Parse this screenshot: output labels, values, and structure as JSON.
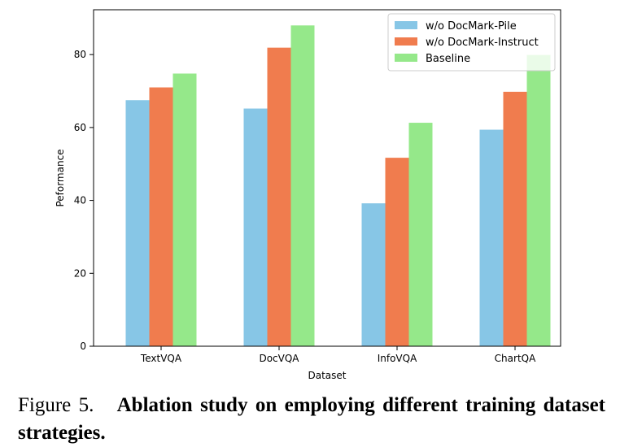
{
  "chart_data": {
    "type": "bar",
    "title": "",
    "xlabel": "Dataset",
    "ylabel": "Peformance",
    "categories": [
      "TextVQA",
      "DocVQA",
      "InfoVQA",
      "ChartQA"
    ],
    "series": [
      {
        "name": "w/o DocMark-Pile",
        "values": [
          67.5,
          65.2,
          39.2,
          59.4
        ],
        "color": "#87c6e6"
      },
      {
        "name": "w/o DocMark-Instruct",
        "values": [
          71.0,
          81.9,
          51.7,
          69.8
        ],
        "color": "#f07c4e"
      },
      {
        "name": "Baseline",
        "values": [
          74.8,
          88.0,
          61.3,
          79.9
        ],
        "color": "#95e88a"
      }
    ],
    "yticks": [
      0,
      20,
      40,
      60,
      80
    ],
    "ylim": [
      0,
      92.3
    ],
    "grid": false,
    "legend": "top-right"
  },
  "caption": {
    "label": "Figure 5.",
    "text": "Ablation study on employing different training dataset strategies."
  }
}
